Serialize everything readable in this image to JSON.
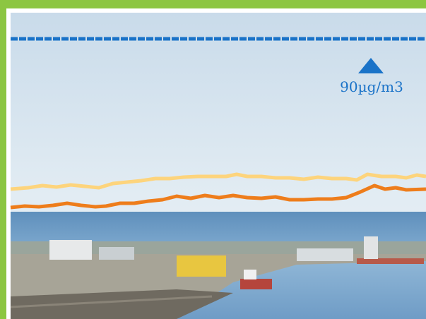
{
  "annotation": {
    "label": "90µg/m3"
  }
}
